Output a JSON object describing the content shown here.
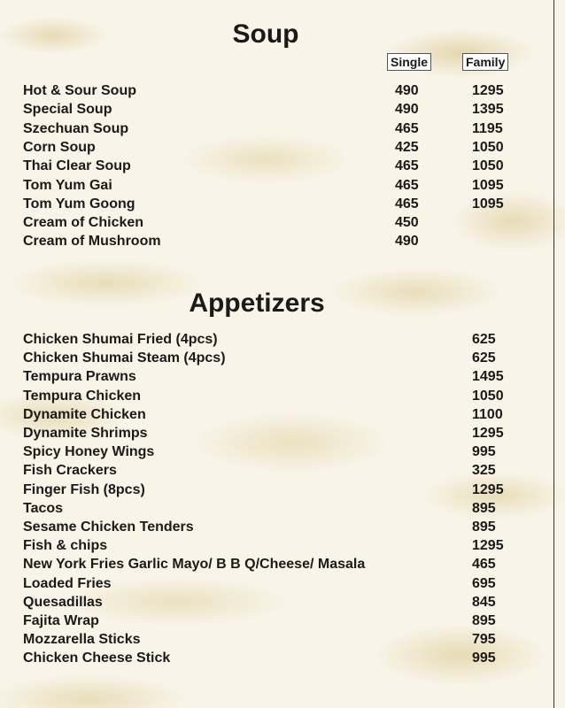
{
  "soup": {
    "title": "Soup",
    "single_label": "Single",
    "family_label": "Family",
    "items": [
      {
        "name": "Hot & Sour Soup",
        "single": "490",
        "family": "1295"
      },
      {
        "name": "Special Soup",
        "single": "490",
        "family": "1395"
      },
      {
        "name": "Szechuan Soup",
        "single": "465",
        "family": "1195"
      },
      {
        "name": "Corn Soup",
        "single": "425",
        "family": "1050"
      },
      {
        "name": "Thai Clear Soup",
        "single": "465",
        "family": "1050"
      },
      {
        "name": "Tom Yum Gai",
        "single": "465",
        "family": "1095"
      },
      {
        "name": "Tom Yum Goong",
        "single": "465",
        "family": "1095"
      },
      {
        "name": "Cream of Chicken",
        "single": "450",
        "family": ""
      },
      {
        "name": "Cream of Mushroom",
        "single": "490",
        "family": ""
      }
    ]
  },
  "appetizers": {
    "title": "Appetizers",
    "items": [
      {
        "name": "Chicken Shumai Fried (4pcs)",
        "price": "625"
      },
      {
        "name": "Chicken Shumai Steam (4pcs)",
        "price": "625"
      },
      {
        "name": "Tempura Prawns",
        "price": "1495"
      },
      {
        "name": "Tempura Chicken",
        "price": "1050"
      },
      {
        "name": "Dynamite Chicken",
        "price": "1100"
      },
      {
        "name": "Dynamite Shrimps",
        "price": "1295"
      },
      {
        "name": "Spicy Honey Wings",
        "price": "995"
      },
      {
        "name": "Fish Crackers",
        "price": "325"
      },
      {
        "name": "Finger Fish (8pcs)",
        "price": "1295"
      },
      {
        "name": "Tacos",
        "price": "895"
      },
      {
        "name": "Sesame Chicken Tenders",
        "price": "895"
      },
      {
        "name": "Fish & chips",
        "price": "1295"
      },
      {
        "name": "New York Fries Garlic Mayo/ B B Q/Cheese/ Masala",
        "price": "465"
      },
      {
        "name": "Loaded Fries",
        "price": "695"
      },
      {
        "name": "Quesadillas",
        "price": "845"
      },
      {
        "name": "Fajita Wrap",
        "price": "895"
      },
      {
        "name": "Mozzarella Sticks",
        "price": "795"
      },
      {
        "name": "Chicken Cheese Stick",
        "price": "995"
      }
    ]
  }
}
